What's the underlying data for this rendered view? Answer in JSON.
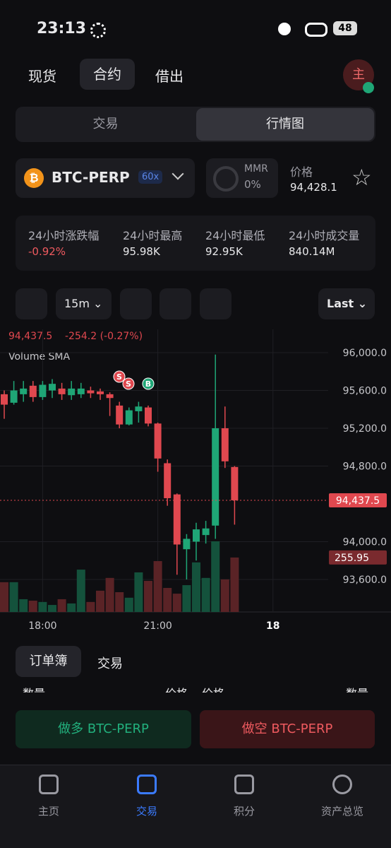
{
  "status": {
    "time": "23:13",
    "battery": "48"
  },
  "tabs": {
    "items": [
      "现货",
      "合约",
      "借出"
    ],
    "avatar": "主"
  },
  "segment": [
    "交易",
    "行情图"
  ],
  "market": {
    "symbol": "BTC-PERP",
    "leverage": "60x",
    "mmr_label": "MMR",
    "mmr_value": "0%",
    "price_label": "价格",
    "price": "94,428.1"
  },
  "stats": [
    {
      "label": "24小时涨跌幅",
      "value": "-0.92%"
    },
    {
      "label": "24小时最高",
      "value": "95.98K"
    },
    {
      "label": "24小时最低",
      "value": "92.95K"
    },
    {
      "label": "24小时成交量",
      "value": "840.14M"
    }
  ],
  "toolbar": {
    "interval": "15m",
    "price_type": "Last"
  },
  "chart_data": {
    "type": "candlestick",
    "header_change": "-254.2 (-0.27%)",
    "indicator": "Volume SMA",
    "open": [
      95560,
      95470,
      95560,
      95650,
      95530,
      95600,
      95620,
      95550,
      95560,
      95600,
      95590,
      95560,
      95440,
      95240,
      95380,
      95420,
      95250,
      94830,
      94500,
      93920,
      94000,
      94070,
      94170,
      95200,
      94790
    ],
    "high": [
      95600,
      95700,
      95700,
      95700,
      95700,
      95720,
      95680,
      95700,
      95680,
      95640,
      95620,
      95580,
      95480,
      95420,
      95480,
      95440,
      95260,
      94870,
      94510,
      94080,
      94200,
      94220,
      95980,
      95430,
      94800
    ],
    "low": [
      95300,
      95450,
      95480,
      95480,
      95500,
      95520,
      95500,
      95500,
      95520,
      95520,
      95500,
      95330,
      95200,
      95230,
      95260,
      95220,
      94740,
      94380,
      93650,
      93600,
      93800,
      93980,
      94030,
      94780,
      94180
    ],
    "close": [
      95450,
      95600,
      95620,
      95530,
      95660,
      95670,
      95560,
      95620,
      95620,
      95570,
      95560,
      95520,
      95240,
      95390,
      95430,
      95250,
      94880,
      94460,
      93970,
      94030,
      94130,
      94140,
      95200,
      94850,
      94437.5
    ],
    "volume": [
      140,
      140,
      60,
      53,
      47,
      33,
      60,
      40,
      199,
      47,
      100,
      160,
      93,
      67,
      186,
      146,
      239,
      113,
      86,
      126,
      233,
      160,
      332,
      153,
      255.95
    ],
    "ylim": [
      93256,
      96247
    ],
    "yticks": [
      {
        "value": 96000,
        "label": "96,000.0"
      },
      {
        "value": 95600,
        "label": "95,600.0"
      },
      {
        "value": 95200,
        "label": "95,200.0"
      },
      {
        "value": 94800,
        "label": "94,800.0"
      },
      {
        "value": 94000,
        "label": "94,000.0"
      },
      {
        "value": 93600,
        "label": "93,600.0"
      }
    ],
    "xticks": [
      {
        "value": 4,
        "label": "18:00"
      },
      {
        "value": 16,
        "label": "21:00"
      },
      {
        "value": 28,
        "label": "18"
      }
    ],
    "last_price": {
      "value": 94437.5,
      "label": "94,437.5"
    },
    "markers": [
      "S",
      "S",
      "B"
    ]
  },
  "orderbook": {
    "tabs": [
      "订单簿",
      "交易"
    ],
    "columns": [
      "数量",
      "价格",
      "价格",
      "数量"
    ]
  },
  "actions": {
    "long": "做多 BTC-PERP",
    "short": "做空 BTC-PERP"
  },
  "nav": [
    "主页",
    "交易",
    "积分",
    "资产总览"
  ]
}
